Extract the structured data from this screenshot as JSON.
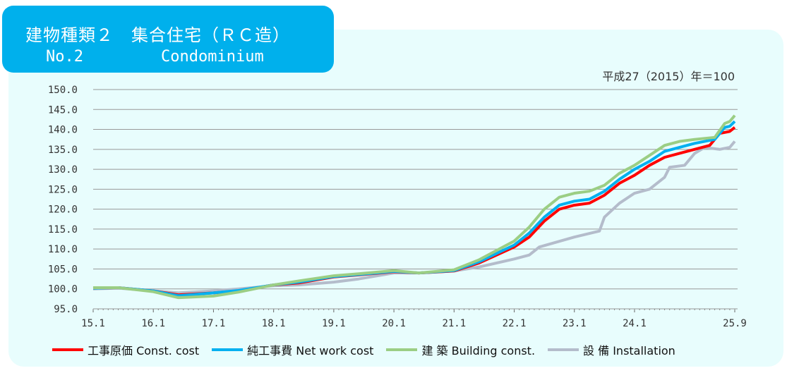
{
  "header": {
    "line1": "建物種類２　集合住宅（ＲＣ造）",
    "no": "No.2",
    "name": "Condominium"
  },
  "chart_data": {
    "type": "line",
    "unit_note": "平成27（2015）年＝100",
    "ylim": [
      95,
      150
    ],
    "yticks": [
      "150.0",
      "145.0",
      "140.0",
      "135.0",
      "130.0",
      "125.0",
      "120.0",
      "115.0",
      "110.0",
      "105.0",
      "100.0",
      "95.0"
    ],
    "xticks": [
      "15.1",
      "16.1",
      "17.1",
      "18.1",
      "19.1",
      "20.1",
      "21.1",
      "22.1",
      "23.1",
      "24.1",
      "25.9"
    ],
    "grid": true,
    "legend": "bottom",
    "series": [
      {
        "name": "工事原価  Const. cost",
        "color": "#ff0000",
        "points": [
          [
            "15.1",
            100.2
          ],
          [
            "15.6",
            100.3
          ],
          [
            "16.1",
            99.5
          ],
          [
            "16.6",
            98.5
          ],
          [
            "17.1",
            99.0
          ],
          [
            "17.6",
            99.5
          ],
          [
            "18.1",
            101
          ],
          [
            "18.6",
            101.5
          ],
          [
            "19.1",
            103
          ],
          [
            "19.6",
            103.5
          ],
          [
            "20.1",
            104.3
          ],
          [
            "20.6",
            104
          ],
          [
            "21.1",
            104.5
          ],
          [
            "21.6",
            106.5
          ],
          [
            "22.1",
            110.5
          ],
          [
            "22.4",
            113
          ],
          [
            "22.7",
            117
          ],
          [
            "22.10",
            120
          ],
          [
            "23.1",
            121
          ],
          [
            "23.4",
            121.5
          ],
          [
            "23.7",
            123.5
          ],
          [
            "23.10",
            126.5
          ],
          [
            "24.1",
            128.5
          ],
          [
            "24.4",
            131
          ],
          [
            "24.7",
            133
          ],
          [
            "24.10",
            134
          ],
          [
            "25.1",
            135
          ],
          [
            "25.4",
            136
          ],
          [
            "25.6",
            139
          ],
          [
            "25.8",
            139.5
          ],
          [
            "25.9",
            140.5
          ]
        ]
      },
      {
        "name": "純工事費  Net work cost",
        "color": "#00b0f0",
        "points": [
          [
            "15.1",
            100.2
          ],
          [
            "15.6",
            100.3
          ],
          [
            "16.1",
            99.5
          ],
          [
            "16.6",
            98.3
          ],
          [
            "17.1",
            99.0
          ],
          [
            "17.6",
            99.6
          ],
          [
            "18.1",
            101
          ],
          [
            "18.6",
            101.7
          ],
          [
            "19.1",
            103.1
          ],
          [
            "19.6",
            103.6
          ],
          [
            "20.1",
            104.4
          ],
          [
            "20.6",
            104
          ],
          [
            "21.1",
            104.6
          ],
          [
            "21.6",
            106.8
          ],
          [
            "22.1",
            111
          ],
          [
            "22.4",
            114
          ],
          [
            "22.7",
            118
          ],
          [
            "22.10",
            121
          ],
          [
            "23.1",
            122
          ],
          [
            "23.4",
            122.5
          ],
          [
            "23.7",
            124.5
          ],
          [
            "23.10",
            127.5
          ],
          [
            "24.1",
            130
          ],
          [
            "24.4",
            132
          ],
          [
            "24.7",
            134.5
          ],
          [
            "24.10",
            135.5
          ],
          [
            "25.1",
            136.5
          ],
          [
            "25.5",
            137.5
          ],
          [
            "25.7",
            140.5
          ],
          [
            "25.8",
            140.8
          ],
          [
            "25.9",
            142
          ]
        ]
      },
      {
        "name": "建 築  Building const.",
        "color": "#9bce84",
        "points": [
          [
            "15.1",
            100.3
          ],
          [
            "15.6",
            100.3
          ],
          [
            "16.1",
            99.3
          ],
          [
            "16.6",
            97.8
          ],
          [
            "17.1",
            98.2
          ],
          [
            "17.6",
            99.2
          ],
          [
            "18.1",
            101
          ],
          [
            "18.6",
            102
          ],
          [
            "19.1",
            103.3
          ],
          [
            "19.6",
            103.8
          ],
          [
            "20.1",
            104.6
          ],
          [
            "20.6",
            104
          ],
          [
            "21.1",
            104.8
          ],
          [
            "21.6",
            107.3
          ],
          [
            "22.1",
            112
          ],
          [
            "22.4",
            115.5
          ],
          [
            "22.7",
            120
          ],
          [
            "22.10",
            123
          ],
          [
            "23.1",
            124
          ],
          [
            "23.4",
            124.5
          ],
          [
            "23.7",
            126
          ],
          [
            "23.10",
            129
          ],
          [
            "24.1",
            131
          ],
          [
            "24.4",
            133.5
          ],
          [
            "24.7",
            136
          ],
          [
            "24.10",
            137
          ],
          [
            "25.1",
            137.5
          ],
          [
            "25.5",
            138
          ],
          [
            "25.7",
            141.5
          ],
          [
            "25.8",
            142
          ],
          [
            "25.9",
            143.5
          ]
        ]
      },
      {
        "name": "設 備  Installation",
        "color": "#b4bccb",
        "points": [
          [
            "15.1",
            100
          ],
          [
            "15.6",
            100.2
          ],
          [
            "16.1",
            99.5
          ],
          [
            "16.6",
            99
          ],
          [
            "17.1",
            99.5
          ],
          [
            "17.6",
            100
          ],
          [
            "18.1",
            100.8
          ],
          [
            "18.6",
            101
          ],
          [
            "19.1",
            101.7
          ],
          [
            "19.6",
            102.5
          ],
          [
            "20.1",
            104
          ],
          [
            "20.6",
            104
          ],
          [
            "21.1",
            104.5
          ],
          [
            "21.6",
            105.5
          ],
          [
            "22.1",
            107.5
          ],
          [
            "22.4",
            108.5
          ],
          [
            "22.6",
            110.5
          ],
          [
            "23.1",
            113
          ],
          [
            "23.6",
            114.5
          ],
          [
            "23.7",
            118
          ],
          [
            "23.10",
            121.5
          ],
          [
            "24.1",
            124
          ],
          [
            "24.4",
            125
          ],
          [
            "24.7",
            128
          ],
          [
            "24.8",
            130.5
          ],
          [
            "24.11",
            131
          ],
          [
            "25.1",
            134
          ],
          [
            "25.3",
            135.5
          ],
          [
            "25.6",
            135
          ],
          [
            "25.8",
            135.5
          ],
          [
            "25.9",
            137
          ]
        ]
      }
    ]
  }
}
